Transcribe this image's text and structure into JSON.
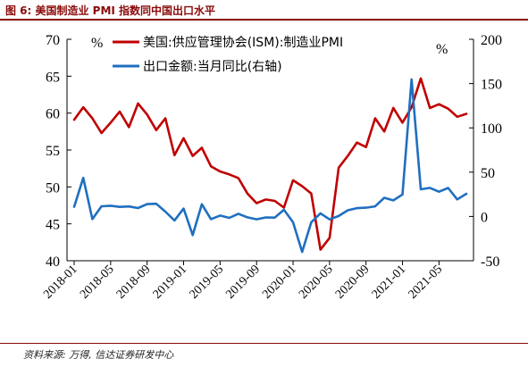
{
  "figure": {
    "title": "图 6: 美国制造业 PMI 指数同中国出口水平",
    "source": "资料来源: 万得, 信达证券研发中心"
  },
  "chart_data": {
    "type": "line",
    "x_labels": [
      "2018-01",
      "2018-05",
      "2018-09",
      "2019-01",
      "2019-05",
      "2019-09",
      "2020-01",
      "2020-05",
      "2020-09",
      "2021-01",
      "2021-05"
    ],
    "x_dates": [
      "2018-01",
      "2018-02",
      "2018-03",
      "2018-04",
      "2018-05",
      "2018-06",
      "2018-07",
      "2018-08",
      "2018-09",
      "2018-10",
      "2018-11",
      "2018-12",
      "2019-01",
      "2019-02",
      "2019-03",
      "2019-04",
      "2019-05",
      "2019-06",
      "2019-07",
      "2019-08",
      "2019-09",
      "2019-10",
      "2019-11",
      "2019-12",
      "2020-01",
      "2020-02",
      "2020-03",
      "2020-04",
      "2020-05",
      "2020-06",
      "2020-07",
      "2020-08",
      "2020-09",
      "2020-10",
      "2020-11",
      "2020-12",
      "2021-01",
      "2021-02",
      "2021-03",
      "2021-04",
      "2021-05",
      "2021-06",
      "2021-07",
      "2021-08"
    ],
    "left_axis": {
      "unit": "%",
      "ylim": [
        40,
        70
      ],
      "ticks": [
        40,
        45,
        50,
        55,
        60,
        65,
        70
      ]
    },
    "right_axis": {
      "unit": "%",
      "ylim": [
        -50,
        200
      ],
      "ticks": [
        -50,
        0,
        50,
        100,
        150,
        200
      ]
    },
    "legend_position": "top-center",
    "grid": false,
    "series": [
      {
        "name": "美国:供应管理协会(ISM):制造业PMI",
        "axis": "left",
        "color": "#c00000",
        "values": [
          59.1,
          60.8,
          59.3,
          57.3,
          58.7,
          60.2,
          58.1,
          61.3,
          59.8,
          57.7,
          59.3,
          54.3,
          56.6,
          54.2,
          55.3,
          52.8,
          52.1,
          51.7,
          51.2,
          49.1,
          47.8,
          48.3,
          48.1,
          47.2,
          50.9,
          50.1,
          49.1,
          41.5,
          43.1,
          52.6,
          54.2,
          56.0,
          55.4,
          59.3,
          57.5,
          60.7,
          58.7,
          60.8,
          64.7,
          60.7,
          61.2,
          60.6,
          59.5,
          59.9
        ]
      },
      {
        "name": "出口金额:当月同比(右轴)",
        "axis": "right",
        "color": "#1f6fc0",
        "values": [
          10.9,
          43.5,
          -3.0,
          11.5,
          12.1,
          10.8,
          11.3,
          9.5,
          13.9,
          14.3,
          5.4,
          -4.5,
          8.9,
          -21.1,
          13.8,
          -3.0,
          1.0,
          -1.6,
          3.0,
          -1.0,
          -3.2,
          -1.1,
          -1.3,
          7.6,
          -6.6,
          -40.0,
          -6.6,
          3.5,
          -3.3,
          0.5,
          7.0,
          9.4,
          9.9,
          11.4,
          21.1,
          18.1,
          24.8,
          154.7,
          30.6,
          32.3,
          27.9,
          32.2,
          19.3,
          25.6
        ]
      }
    ]
  }
}
